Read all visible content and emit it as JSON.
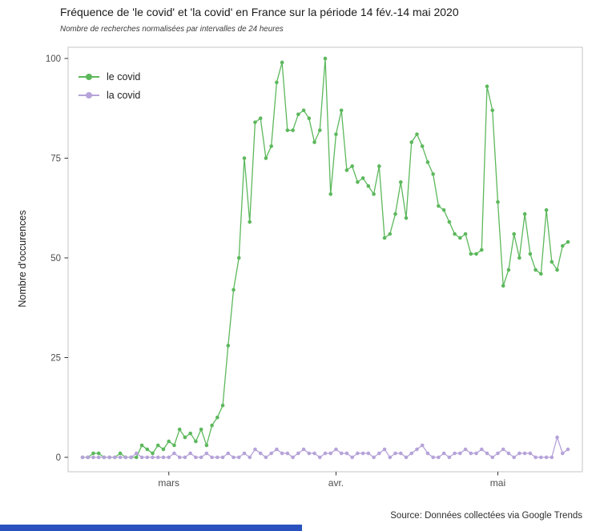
{
  "header": {
    "title": "Fréquence de 'le covid' et 'la covid' en France sur la période 14 fév.-14 mai 2020",
    "subtitle": "Nombre de recherches normalisées par intervalles de 24 heures"
  },
  "footer": {
    "source": "Source: Données collectées via Google Trends",
    "accent_bar_color": "#2a52be"
  },
  "chart_data": {
    "type": "line",
    "title": "Fréquence de 'le covid' et 'la covid' en France sur la période 14 fév.-14 mai 2020",
    "subtitle": "Nombre de recherches normalisées par intervalles de 24 heures",
    "xlabel": "",
    "ylabel": "Nombre d'occurences",
    "ylim": [
      0,
      100
    ],
    "y_ticks": [
      0,
      25,
      50,
      75,
      100
    ],
    "grid": false,
    "legend_position": "top-left-inside",
    "panel_border_color": "#c6c6c6",
    "axis_text_color": "#4d4d4d",
    "x_period": {
      "start": "14 fév. 2020",
      "end": "14 mai 2020",
      "days": 91
    },
    "x_ticks": [
      {
        "label": "mars",
        "day_index": 16
      },
      {
        "label": "avr.",
        "day_index": 47
      },
      {
        "label": "mai",
        "day_index": 77
      }
    ],
    "series": [
      {
        "name": "le covid",
        "color": "#5cb85c",
        "values": [
          0,
          0,
          1,
          1,
          0,
          0,
          0,
          1,
          0,
          0,
          0,
          3,
          2,
          1,
          3,
          2,
          4,
          3,
          7,
          5,
          6,
          4,
          7,
          3,
          8,
          10,
          13,
          28,
          42,
          50,
          75,
          59,
          84,
          85,
          75,
          78,
          94,
          99,
          82,
          82,
          86,
          87,
          85,
          79,
          82,
          100,
          66,
          81,
          87,
          72,
          73,
          69,
          70,
          68,
          66,
          73,
          55,
          56,
          61,
          69,
          60,
          79,
          81,
          78,
          74,
          71,
          63,
          62,
          59,
          56,
          55,
          56,
          51,
          51,
          52,
          93,
          87,
          64,
          43,
          47,
          56,
          50,
          61,
          51,
          47,
          46,
          62,
          49,
          47,
          53,
          54
        ]
      },
      {
        "name": "la covid",
        "color": "#b6a3d9",
        "values": [
          0,
          0,
          0,
          0,
          0,
          0,
          0,
          0,
          0,
          0,
          1,
          0,
          0,
          0,
          0,
          0,
          0,
          1,
          0,
          0,
          1,
          0,
          0,
          1,
          0,
          0,
          0,
          1,
          0,
          0,
          1,
          0,
          2,
          1,
          0,
          1,
          2,
          1,
          1,
          0,
          1,
          2,
          1,
          1,
          0,
          1,
          1,
          2,
          1,
          1,
          0,
          1,
          1,
          1,
          0,
          1,
          2,
          0,
          1,
          1,
          0,
          1,
          2,
          3,
          1,
          0,
          0,
          1,
          0,
          1,
          1,
          2,
          1,
          1,
          2,
          1,
          0,
          1,
          2,
          1,
          0,
          1,
          1,
          1,
          0,
          0,
          0,
          0,
          5,
          1,
          2
        ]
      }
    ]
  }
}
